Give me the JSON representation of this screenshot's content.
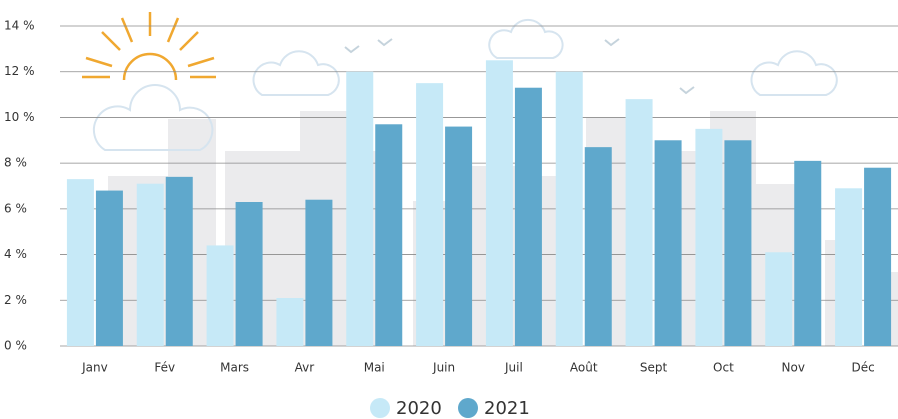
{
  "chart_data": {
    "type": "bar",
    "categories": [
      "Janv",
      "Fév",
      "Mars",
      "Avr",
      "Mai",
      "Juin",
      "Juil",
      "Août",
      "Sept",
      "Oct",
      "Nov",
      "Déc"
    ],
    "series": [
      {
        "name": "2020",
        "color": "#c6e9f7",
        "values": [
          7.3,
          7.1,
          4.4,
          2.1,
          12.0,
          11.5,
          12.5,
          12.0,
          10.8,
          9.5,
          4.1,
          6.9
        ]
      },
      {
        "name": "2021",
        "color": "#5fa8cc",
        "values": [
          6.8,
          7.4,
          6.3,
          6.4,
          9.7,
          9.6,
          11.3,
          8.7,
          9.0,
          9.0,
          8.1,
          7.8
        ]
      }
    ],
    "ylim": [
      0,
      14
    ],
    "yticks": [
      {
        "value": 0,
        "label": "0 %"
      },
      {
        "value": 2,
        "label": "2 %"
      },
      {
        "value": 4,
        "label": "4 %"
      },
      {
        "value": 6,
        "label": "6 %"
      },
      {
        "value": 8,
        "label": "8 %"
      },
      {
        "value": 10,
        "label": "10 %"
      },
      {
        "value": 12,
        "label": "12 %"
      },
      {
        "value": 14,
        "label": "14 %"
      }
    ],
    "grid": true,
    "legend": "bottom"
  }
}
